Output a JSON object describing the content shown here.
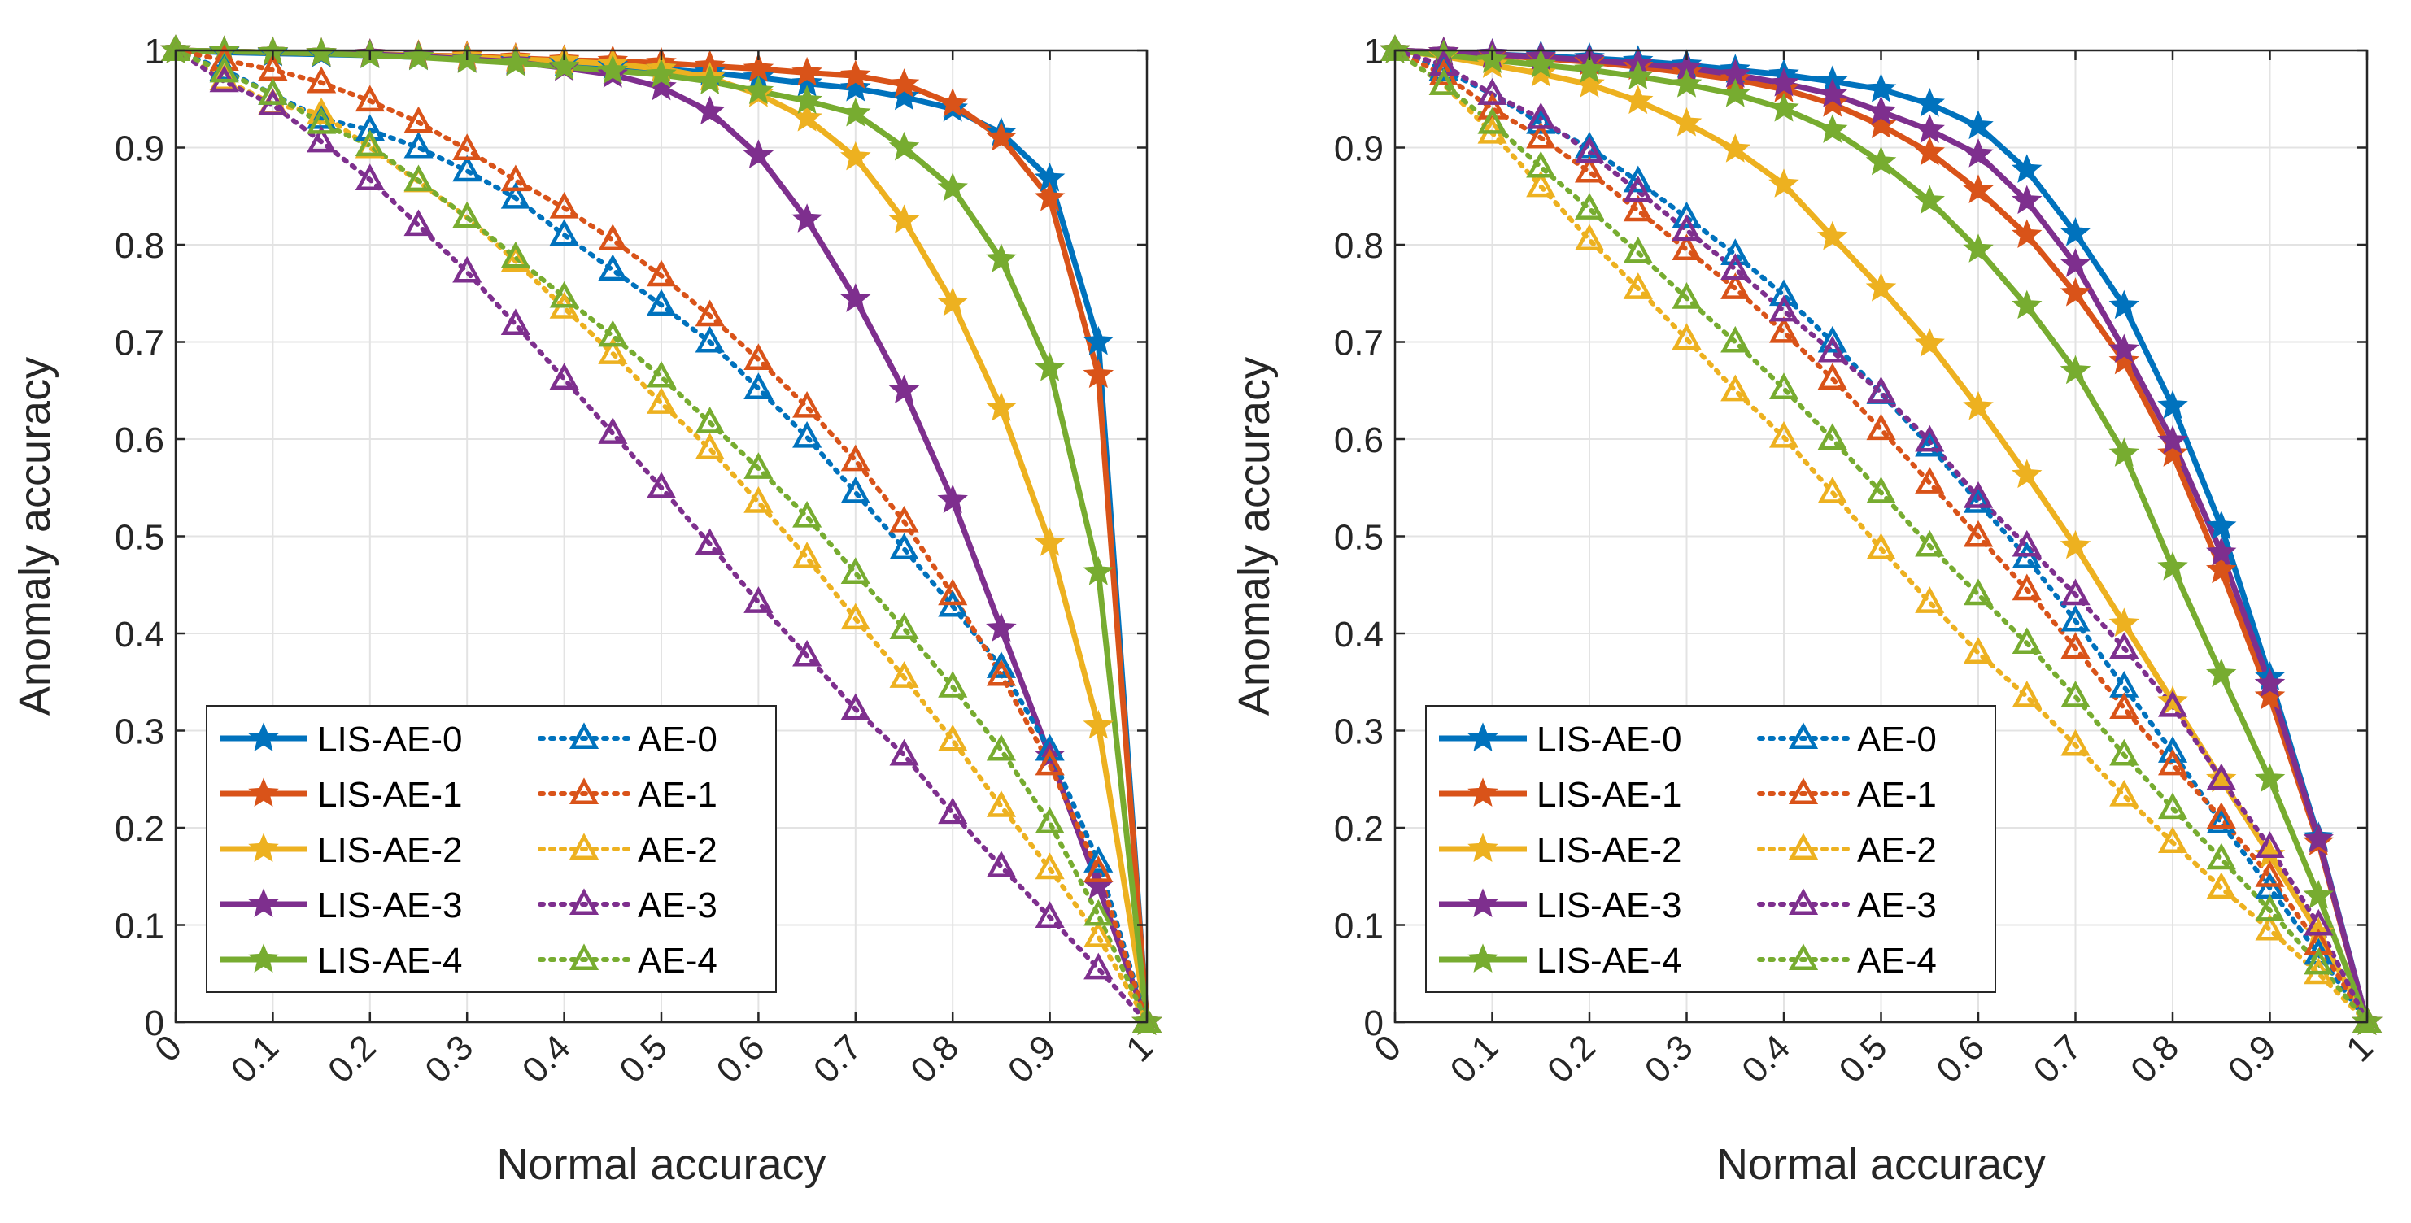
{
  "chart_data": [
    {
      "type": "line",
      "name": "left-panel",
      "xlabel": "Normal accuracy",
      "ylabel": "Anomaly accuracy",
      "xlim": [
        0,
        1
      ],
      "ylim": [
        0,
        1
      ],
      "grid": true,
      "legend_position": "bottom-left",
      "xticks": [
        0,
        0.1,
        0.2,
        0.3,
        0.4,
        0.5,
        0.6,
        0.7,
        0.8,
        0.9,
        1
      ],
      "xtick_labels": [
        "0",
        "0.1",
        "0.2",
        "0.3",
        "0.4",
        "0.5",
        "0.6",
        "0.7",
        "0.8",
        "0.9",
        "1"
      ],
      "yticks": [
        0,
        0.1,
        0.2,
        0.3,
        0.4,
        0.5,
        0.6,
        0.7,
        0.8,
        0.9,
        1
      ],
      "ytick_labels": [
        "0",
        "0.1",
        "0.2",
        "0.3",
        "0.4",
        "0.5",
        "0.6",
        "0.7",
        "0.8",
        "0.9",
        "1"
      ],
      "x": [
        0,
        0.05,
        0.1,
        0.15,
        0.2,
        0.25,
        0.3,
        0.35,
        0.4,
        0.45,
        0.5,
        0.55,
        0.6,
        0.65,
        0.7,
        0.75,
        0.8,
        0.85,
        0.9,
        0.95,
        1
      ],
      "series": [
        {
          "name": "LIS-AE-0",
          "color": "#0072BD",
          "style": "solid",
          "marker": "star",
          "values": [
            1,
            0.998,
            0.997,
            0.996,
            0.995,
            0.993,
            0.991,
            0.989,
            0.987,
            0.984,
            0.981,
            0.977,
            0.972,
            0.966,
            0.961,
            0.952,
            0.94,
            0.915,
            0.868,
            0.7,
            0
          ]
        },
        {
          "name": "LIS-AE-1",
          "color": "#D95319",
          "style": "solid",
          "marker": "star",
          "values": [
            1,
            0.999,
            0.998,
            0.997,
            0.996,
            0.995,
            0.994,
            0.992,
            0.99,
            0.989,
            0.987,
            0.984,
            0.981,
            0.977,
            0.974,
            0.965,
            0.945,
            0.91,
            0.848,
            0.666,
            0
          ]
        },
        {
          "name": "LIS-AE-2",
          "color": "#EDB120",
          "style": "solid",
          "marker": "star",
          "values": [
            1,
            0.999,
            0.998,
            0.997,
            0.996,
            0.995,
            0.993,
            0.991,
            0.989,
            0.986,
            0.981,
            0.972,
            0.955,
            0.93,
            0.89,
            0.825,
            0.74,
            0.632,
            0.493,
            0.305,
            0
          ]
        },
        {
          "name": "LIS-AE-3",
          "color": "#7E2F8E",
          "style": "solid",
          "marker": "star",
          "values": [
            1,
            0.999,
            0.998,
            0.997,
            0.996,
            0.994,
            0.991,
            0.988,
            0.982,
            0.975,
            0.962,
            0.937,
            0.892,
            0.826,
            0.744,
            0.65,
            0.537,
            0.405,
            0.274,
            0.14,
            0
          ]
        },
        {
          "name": "LIS-AE-4",
          "color": "#77AC30",
          "style": "solid",
          "marker": "star",
          "values": [
            1,
            0.999,
            0.998,
            0.997,
            0.995,
            0.993,
            0.99,
            0.987,
            0.983,
            0.979,
            0.975,
            0.968,
            0.958,
            0.948,
            0.935,
            0.9,
            0.858,
            0.785,
            0.673,
            0.463,
            0
          ]
        },
        {
          "name": "AE-0",
          "color": "#0072BD",
          "style": "dotted",
          "marker": "triangle",
          "values": [
            1,
            0.98,
            0.955,
            0.93,
            0.918,
            0.9,
            0.876,
            0.848,
            0.81,
            0.774,
            0.738,
            0.7,
            0.652,
            0.602,
            0.545,
            0.487,
            0.428,
            0.365,
            0.28,
            0.165,
            0
          ]
        },
        {
          "name": "AE-1",
          "color": "#D95319",
          "style": "dotted",
          "marker": "triangle",
          "values": [
            1,
            0.99,
            0.98,
            0.967,
            0.948,
            0.926,
            0.898,
            0.866,
            0.838,
            0.805,
            0.768,
            0.727,
            0.682,
            0.633,
            0.578,
            0.515,
            0.44,
            0.357,
            0.265,
            0.155,
            0
          ]
        },
        {
          "name": "AE-2",
          "color": "#EDB120",
          "style": "dotted",
          "marker": "triangle",
          "values": [
            1,
            0.97,
            0.945,
            0.935,
            0.9,
            0.865,
            0.828,
            0.783,
            0.735,
            0.688,
            0.637,
            0.59,
            0.535,
            0.478,
            0.415,
            0.355,
            0.29,
            0.222,
            0.158,
            0.088,
            0
          ]
        },
        {
          "name": "AE-3",
          "color": "#7E2F8E",
          "style": "dotted",
          "marker": "triangle",
          "values": [
            1,
            0.968,
            0.944,
            0.906,
            0.867,
            0.82,
            0.772,
            0.718,
            0.662,
            0.606,
            0.55,
            0.492,
            0.432,
            0.377,
            0.322,
            0.275,
            0.215,
            0.16,
            0.108,
            0.055,
            0
          ]
        },
        {
          "name": "AE-4",
          "color": "#77AC30",
          "style": "dotted",
          "marker": "triangle",
          "values": [
            1,
            0.978,
            0.955,
            0.925,
            0.902,
            0.866,
            0.828,
            0.787,
            0.746,
            0.706,
            0.664,
            0.617,
            0.57,
            0.52,
            0.462,
            0.405,
            0.345,
            0.28,
            0.205,
            0.11,
            0
          ]
        }
      ]
    },
    {
      "type": "line",
      "name": "right-panel",
      "xlabel": "Normal accuracy",
      "ylabel": "Anomaly accuracy",
      "xlim": [
        0,
        1
      ],
      "ylim": [
        0,
        1
      ],
      "grid": true,
      "legend_position": "bottom-left",
      "xticks": [
        0,
        0.1,
        0.2,
        0.3,
        0.4,
        0.5,
        0.6,
        0.7,
        0.8,
        0.9,
        1
      ],
      "xtick_labels": [
        "0",
        "0.1",
        "0.2",
        "0.3",
        "0.4",
        "0.5",
        "0.6",
        "0.7",
        "0.8",
        "0.9",
        "1"
      ],
      "yticks": [
        0,
        0.1,
        0.2,
        0.3,
        0.4,
        0.5,
        0.6,
        0.7,
        0.8,
        0.9,
        1
      ],
      "ytick_labels": [
        "0",
        "0.1",
        "0.2",
        "0.3",
        "0.4",
        "0.5",
        "0.6",
        "0.7",
        "0.8",
        "0.9",
        "1"
      ],
      "x": [
        0,
        0.05,
        0.1,
        0.15,
        0.2,
        0.25,
        0.3,
        0.35,
        0.4,
        0.45,
        0.5,
        0.55,
        0.6,
        0.65,
        0.7,
        0.75,
        0.8,
        0.85,
        0.9,
        0.95,
        1
      ],
      "series": [
        {
          "name": "LIS-AE-0",
          "color": "#0072BD",
          "style": "solid",
          "marker": "star",
          "values": [
            1,
            0.998,
            0.996,
            0.994,
            0.992,
            0.989,
            0.985,
            0.98,
            0.975,
            0.968,
            0.96,
            0.945,
            0.922,
            0.877,
            0.812,
            0.737,
            0.634,
            0.51,
            0.355,
            0.19,
            0
          ]
        },
        {
          "name": "LIS-AE-1",
          "color": "#D95319",
          "style": "solid",
          "marker": "star",
          "values": [
            1,
            0.998,
            0.995,
            0.992,
            0.988,
            0.983,
            0.977,
            0.97,
            0.96,
            0.945,
            0.923,
            0.895,
            0.856,
            0.81,
            0.75,
            0.68,
            0.585,
            0.465,
            0.335,
            0.185,
            0
          ]
        },
        {
          "name": "LIS-AE-2",
          "color": "#EDB120",
          "style": "solid",
          "marker": "star",
          "values": [
            1,
            0.994,
            0.985,
            0.976,
            0.965,
            0.948,
            0.925,
            0.898,
            0.862,
            0.808,
            0.755,
            0.698,
            0.633,
            0.563,
            0.49,
            0.41,
            0.33,
            0.25,
            0.172,
            0.092,
            0
          ]
        },
        {
          "name": "LIS-AE-3",
          "color": "#7E2F8E",
          "style": "solid",
          "marker": "star",
          "values": [
            1,
            0.998,
            0.996,
            0.993,
            0.99,
            0.986,
            0.982,
            0.975,
            0.966,
            0.955,
            0.937,
            0.918,
            0.893,
            0.845,
            0.78,
            0.692,
            0.598,
            0.483,
            0.348,
            0.188,
            0
          ]
        },
        {
          "name": "LIS-AE-4",
          "color": "#77AC30",
          "style": "solid",
          "marker": "star",
          "values": [
            1,
            0.995,
            0.99,
            0.985,
            0.98,
            0.973,
            0.965,
            0.955,
            0.94,
            0.918,
            0.885,
            0.845,
            0.795,
            0.737,
            0.67,
            0.585,
            0.468,
            0.358,
            0.25,
            0.13,
            0
          ]
        },
        {
          "name": "AE-0",
          "color": "#0072BD",
          "style": "dotted",
          "marker": "triangle",
          "values": [
            1,
            0.98,
            0.955,
            0.925,
            0.9,
            0.865,
            0.828,
            0.79,
            0.748,
            0.7,
            0.647,
            0.593,
            0.535,
            0.478,
            0.413,
            0.345,
            0.278,
            0.205,
            0.138,
            0.07,
            0
          ]
        },
        {
          "name": "AE-1",
          "color": "#D95319",
          "style": "dotted",
          "marker": "triangle",
          "values": [
            1,
            0.975,
            0.94,
            0.91,
            0.875,
            0.835,
            0.795,
            0.755,
            0.71,
            0.662,
            0.61,
            0.555,
            0.5,
            0.445,
            0.385,
            0.323,
            0.265,
            0.21,
            0.15,
            0.08,
            0
          ]
        },
        {
          "name": "AE-2",
          "color": "#EDB120",
          "style": "dotted",
          "marker": "triangle",
          "values": [
            1,
            0.965,
            0.915,
            0.86,
            0.805,
            0.755,
            0.703,
            0.65,
            0.602,
            0.545,
            0.487,
            0.432,
            0.38,
            0.335,
            0.285,
            0.233,
            0.185,
            0.138,
            0.095,
            0.05,
            0
          ]
        },
        {
          "name": "AE-3",
          "color": "#7E2F8E",
          "style": "dotted",
          "marker": "triangle",
          "values": [
            1,
            0.985,
            0.955,
            0.93,
            0.895,
            0.855,
            0.815,
            0.775,
            0.732,
            0.69,
            0.648,
            0.598,
            0.54,
            0.49,
            0.44,
            0.385,
            0.325,
            0.25,
            0.18,
            0.1,
            0
          ]
        },
        {
          "name": "AE-4",
          "color": "#77AC30",
          "style": "dotted",
          "marker": "triangle",
          "values": [
            1,
            0.965,
            0.925,
            0.88,
            0.837,
            0.792,
            0.745,
            0.7,
            0.652,
            0.6,
            0.545,
            0.49,
            0.44,
            0.39,
            0.335,
            0.275,
            0.22,
            0.168,
            0.115,
            0.06,
            0
          ]
        }
      ]
    }
  ]
}
